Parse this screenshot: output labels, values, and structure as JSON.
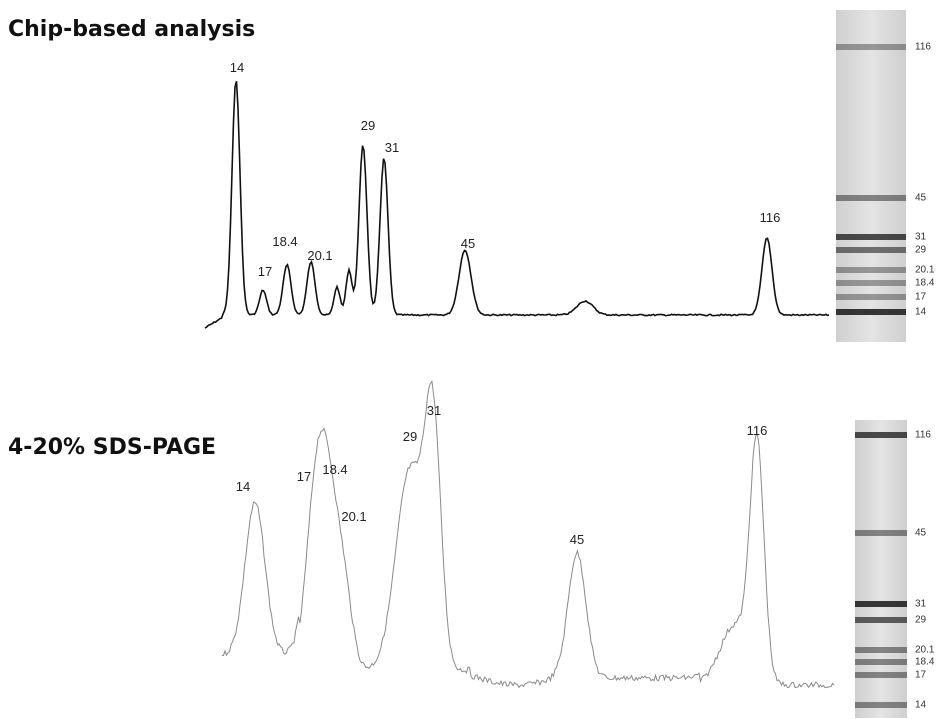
{
  "panels": [
    {
      "title": "Chip-based analysis",
      "peaks": [
        "14",
        "17",
        "18.4",
        "20.1",
        "29",
        "31",
        "45",
        "116"
      ],
      "ladder": [
        "116",
        "45",
        "31",
        "29",
        "20.1",
        "18.4",
        "17",
        "14"
      ]
    },
    {
      "title": "4-20% SDS-PAGE",
      "peaks": [
        "14",
        "17",
        "18.4",
        "20.1",
        "29",
        "31",
        "45",
        "116"
      ],
      "ladder": [
        "116",
        "45",
        "31",
        "29",
        "20.1",
        "18.4",
        "17",
        "14"
      ]
    }
  ]
}
